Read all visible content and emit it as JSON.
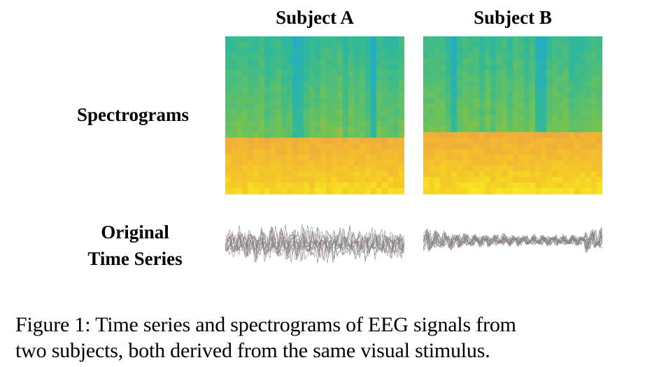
{
  "figure": {
    "columns": [
      "Subject A",
      "Subject B"
    ],
    "rows": {
      "spectrogram_label": "Spectrograms",
      "timeseries_label_line1": "Original",
      "timeseries_label_line2": "Time Series"
    },
    "caption_line1": "Figure 1: Time series and spectrograms of EEG signals from",
    "caption_line2": "two subjects, both derived from the same visual stimulus.",
    "colors": {
      "spectrogram_low": "#2fb8c8",
      "spectrogram_mid": "#7ec45a",
      "spectrogram_high": "#f7e62a",
      "spectrogram_orange": "#f2a43a"
    }
  }
}
